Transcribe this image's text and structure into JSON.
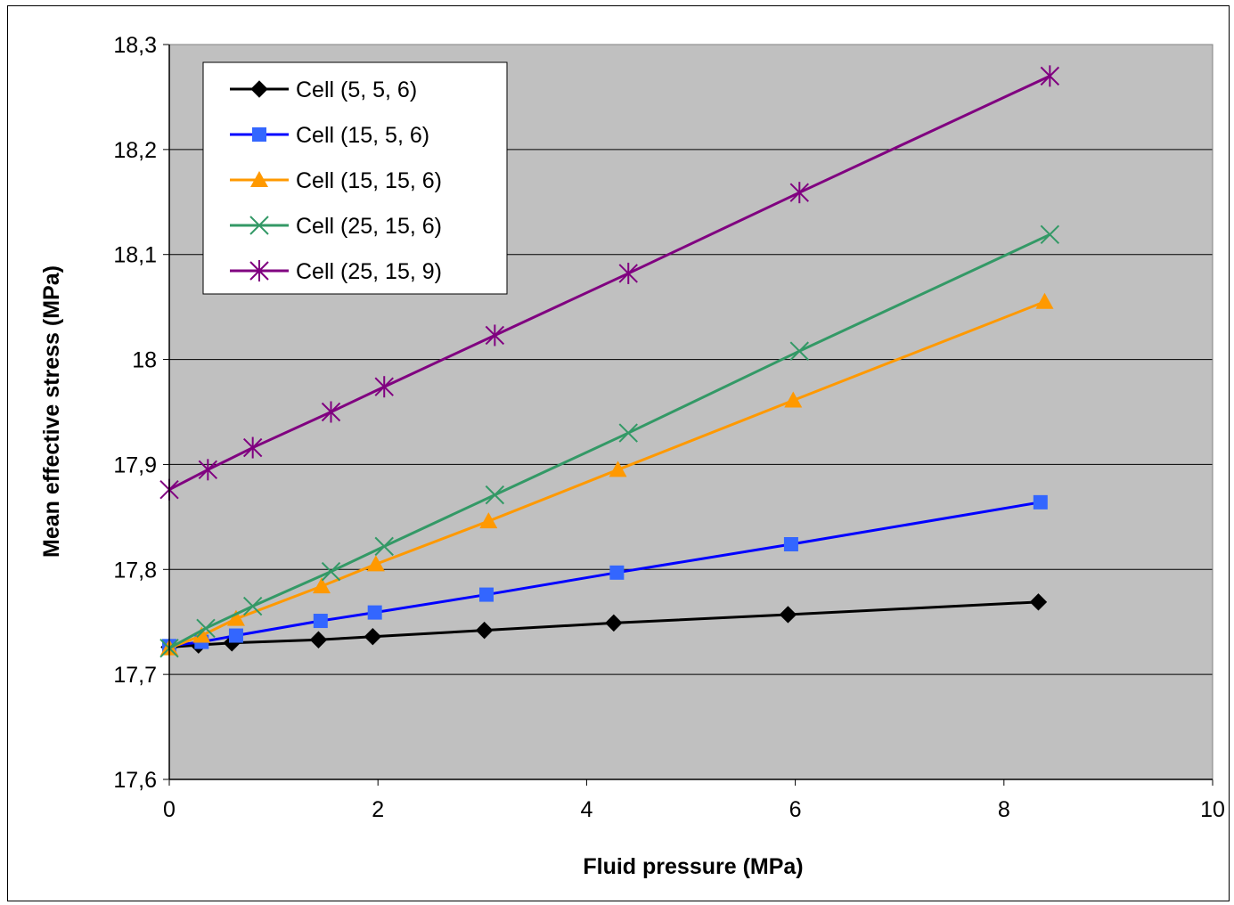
{
  "chart_data": {
    "type": "line",
    "title": "",
    "xlabel": "Fluid pressure (MPa)",
    "ylabel": "Mean effective stress (MPa)",
    "xlim": [
      0,
      10
    ],
    "ylim": [
      17.6,
      18.3
    ],
    "x_ticks": [
      "0",
      "2",
      "4",
      "6",
      "8",
      "10"
    ],
    "y_ticks": [
      "17,6",
      "17,7",
      "17,8",
      "17,9",
      "18",
      "18,1",
      "18,2",
      "18,3"
    ],
    "grid": "horizontal",
    "plot_background": "#c0c0c0",
    "legend_position": "top-left",
    "series": [
      {
        "name": "Cell (5, 5, 6)",
        "color": "#000000",
        "marker": "diamond",
        "x": [
          0,
          0.28,
          0.6,
          1.43,
          1.95,
          3.02,
          4.26,
          5.93,
          8.33
        ],
        "y": [
          17.726,
          17.728,
          17.73,
          17.733,
          17.736,
          17.742,
          17.749,
          17.757,
          17.769
        ]
      },
      {
        "name": "Cell (15, 5, 6)",
        "color": "#0000ff",
        "marker_color": "#3366ff",
        "marker": "square",
        "x": [
          0,
          0.31,
          0.64,
          1.45,
          1.97,
          3.04,
          4.29,
          5.96,
          8.35
        ],
        "y": [
          17.727,
          17.731,
          17.737,
          17.751,
          17.759,
          17.776,
          17.797,
          17.824,
          17.864
        ]
      },
      {
        "name": "Cell (15, 15, 6)",
        "color": "#ff9900",
        "marker": "triangle",
        "x": [
          0,
          0.31,
          0.64,
          1.46,
          1.98,
          3.06,
          4.3,
          5.98,
          8.39
        ],
        "y": [
          17.725,
          17.737,
          17.753,
          17.784,
          17.805,
          17.846,
          17.895,
          17.961,
          18.055
        ]
      },
      {
        "name": "Cell (25, 15, 6)",
        "color": "#339966",
        "marker": "x",
        "x": [
          0,
          0.35,
          0.8,
          1.55,
          2.06,
          3.12,
          4.4,
          6.04,
          8.44
        ],
        "y": [
          17.725,
          17.744,
          17.765,
          17.798,
          17.822,
          17.871,
          17.93,
          18.008,
          18.119
        ]
      },
      {
        "name": "Cell (25, 15, 9)",
        "color": "#800080",
        "marker": "star",
        "x": [
          0,
          0.37,
          0.8,
          1.55,
          2.06,
          3.12,
          4.4,
          6.04,
          8.44
        ],
        "y": [
          17.876,
          17.895,
          17.916,
          17.95,
          17.974,
          18.023,
          18.082,
          18.159,
          18.27
        ]
      }
    ]
  }
}
